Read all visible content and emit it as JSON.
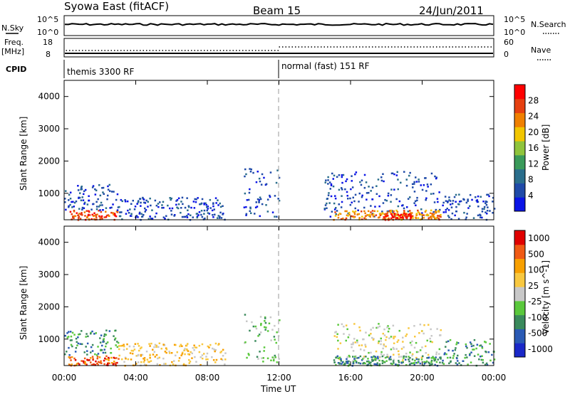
{
  "header": {
    "station": "Syowa East (fitACF)",
    "beam": "Beam 15",
    "date": "24/Jun/2011"
  },
  "status_panels": {
    "nsky_label": "N.Sky",
    "nsky_ticks": [
      "10^5",
      "10^0"
    ],
    "nsearch_label": "N.Search",
    "nsearch_ticks": [
      "10^5",
      "10^0"
    ],
    "freq_label": "Freq.",
    "freq_unit": "[MHz]",
    "freq_ticks": [
      "18",
      "8"
    ],
    "nave_label": "Nave",
    "nave_ticks": [
      "60",
      "0"
    ],
    "cpid_label": "CPID",
    "cpid_segments": [
      {
        "label": "themis 3300 RF",
        "start_hour": 0
      },
      {
        "label": "normal (fast) 151 RF",
        "start_hour": 12
      }
    ]
  },
  "colors": {
    "c0": "#0a14e6",
    "c1": "#1f4aa8",
    "c2": "#2a6e8c",
    "c3": "#3a9a5a",
    "c4": "#8fc43c",
    "c5": "#f2c600",
    "c6": "#f08000",
    "c7": "#e64010",
    "c8": "#ff0000",
    "v0": "#e00000",
    "v1": "#f05a14",
    "v2": "#f8a000",
    "v3": "#f8c840",
    "v4": "#c8c8c8",
    "v5": "#5ac83c",
    "v6": "#3a8a5c",
    "v7": "#2a5ab4",
    "v8": "#1a28c8"
  },
  "chart_data": [
    {
      "type": "heatmap",
      "quantity": "power",
      "ylabel": "Slant Range [km]",
      "xlim": [
        "00:00",
        "24:00"
      ],
      "ylim": [
        180,
        4500
      ],
      "yticks": [
        "1000",
        "2000",
        "3000",
        "4000"
      ],
      "colorbar": {
        "label": "Power [dB]",
        "ticks": [
          "4",
          "8",
          "12",
          "16",
          "20",
          "24",
          "28"
        ],
        "range": [
          0,
          30
        ]
      },
      "regions": [
        {
          "t0": 0.3,
          "t1": 3.0,
          "r0": 200,
          "r1": 500,
          "level": 7
        },
        {
          "t0": 0.0,
          "t1": 3.0,
          "r0": 500,
          "r1": 1300,
          "level": 1
        },
        {
          "t0": 3.0,
          "t1": 9.0,
          "r0": 200,
          "r1": 900,
          "level": 1
        },
        {
          "t0": 10.0,
          "t1": 12.0,
          "r0": 300,
          "r1": 1800,
          "level": 1
        },
        {
          "t0": 14.5,
          "t1": 21.0,
          "r0": 300,
          "r1": 1700,
          "level": 1
        },
        {
          "t0": 15.0,
          "t1": 21.0,
          "r0": 200,
          "r1": 500,
          "level": 6
        },
        {
          "t0": 17.8,
          "t1": 19.5,
          "r0": 200,
          "r1": 400,
          "level": 8
        },
        {
          "t0": 21.0,
          "t1": 24.0,
          "r0": 200,
          "r1": 1000,
          "level": 1
        }
      ]
    },
    {
      "type": "heatmap",
      "quantity": "velocity",
      "xlabel": "Time UT",
      "ylabel": "Slant Range [km]",
      "xlim": [
        "00:00",
        "24:00"
      ],
      "ylim": [
        180,
        4500
      ],
      "xticks": [
        "00:00",
        "04:00",
        "08:00",
        "12:00",
        "16:00",
        "20:00",
        "00:00"
      ],
      "yticks": [
        "1000",
        "2000",
        "3000",
        "4000"
      ],
      "colorbar": {
        "label": "Velocity [m s^-1]",
        "ticks": [
          "1000",
          "500",
          "100",
          "25",
          "-25",
          "-100",
          "-500",
          "-1000"
        ],
        "range": [
          -1000,
          1000
        ]
      },
      "regions": [
        {
          "t0": 0.2,
          "t1": 3.0,
          "r0": 200,
          "r1": 500,
          "level": 1
        },
        {
          "t0": 0.0,
          "t1": 3.0,
          "r0": 500,
          "r1": 1300,
          "level": 6
        },
        {
          "t0": 3.0,
          "t1": 9.0,
          "r0": 200,
          "r1": 900,
          "level": 3
        },
        {
          "t0": 10.0,
          "t1": 12.0,
          "r0": 300,
          "r1": 1800,
          "level": 5
        },
        {
          "t0": 15.0,
          "t1": 21.0,
          "r0": 300,
          "r1": 1500,
          "level": 4
        },
        {
          "t0": 15.0,
          "t1": 21.0,
          "r0": 200,
          "r1": 500,
          "level": 6
        },
        {
          "t0": 21.0,
          "t1": 24.0,
          "r0": 200,
          "r1": 1000,
          "level": 6
        }
      ]
    }
  ]
}
